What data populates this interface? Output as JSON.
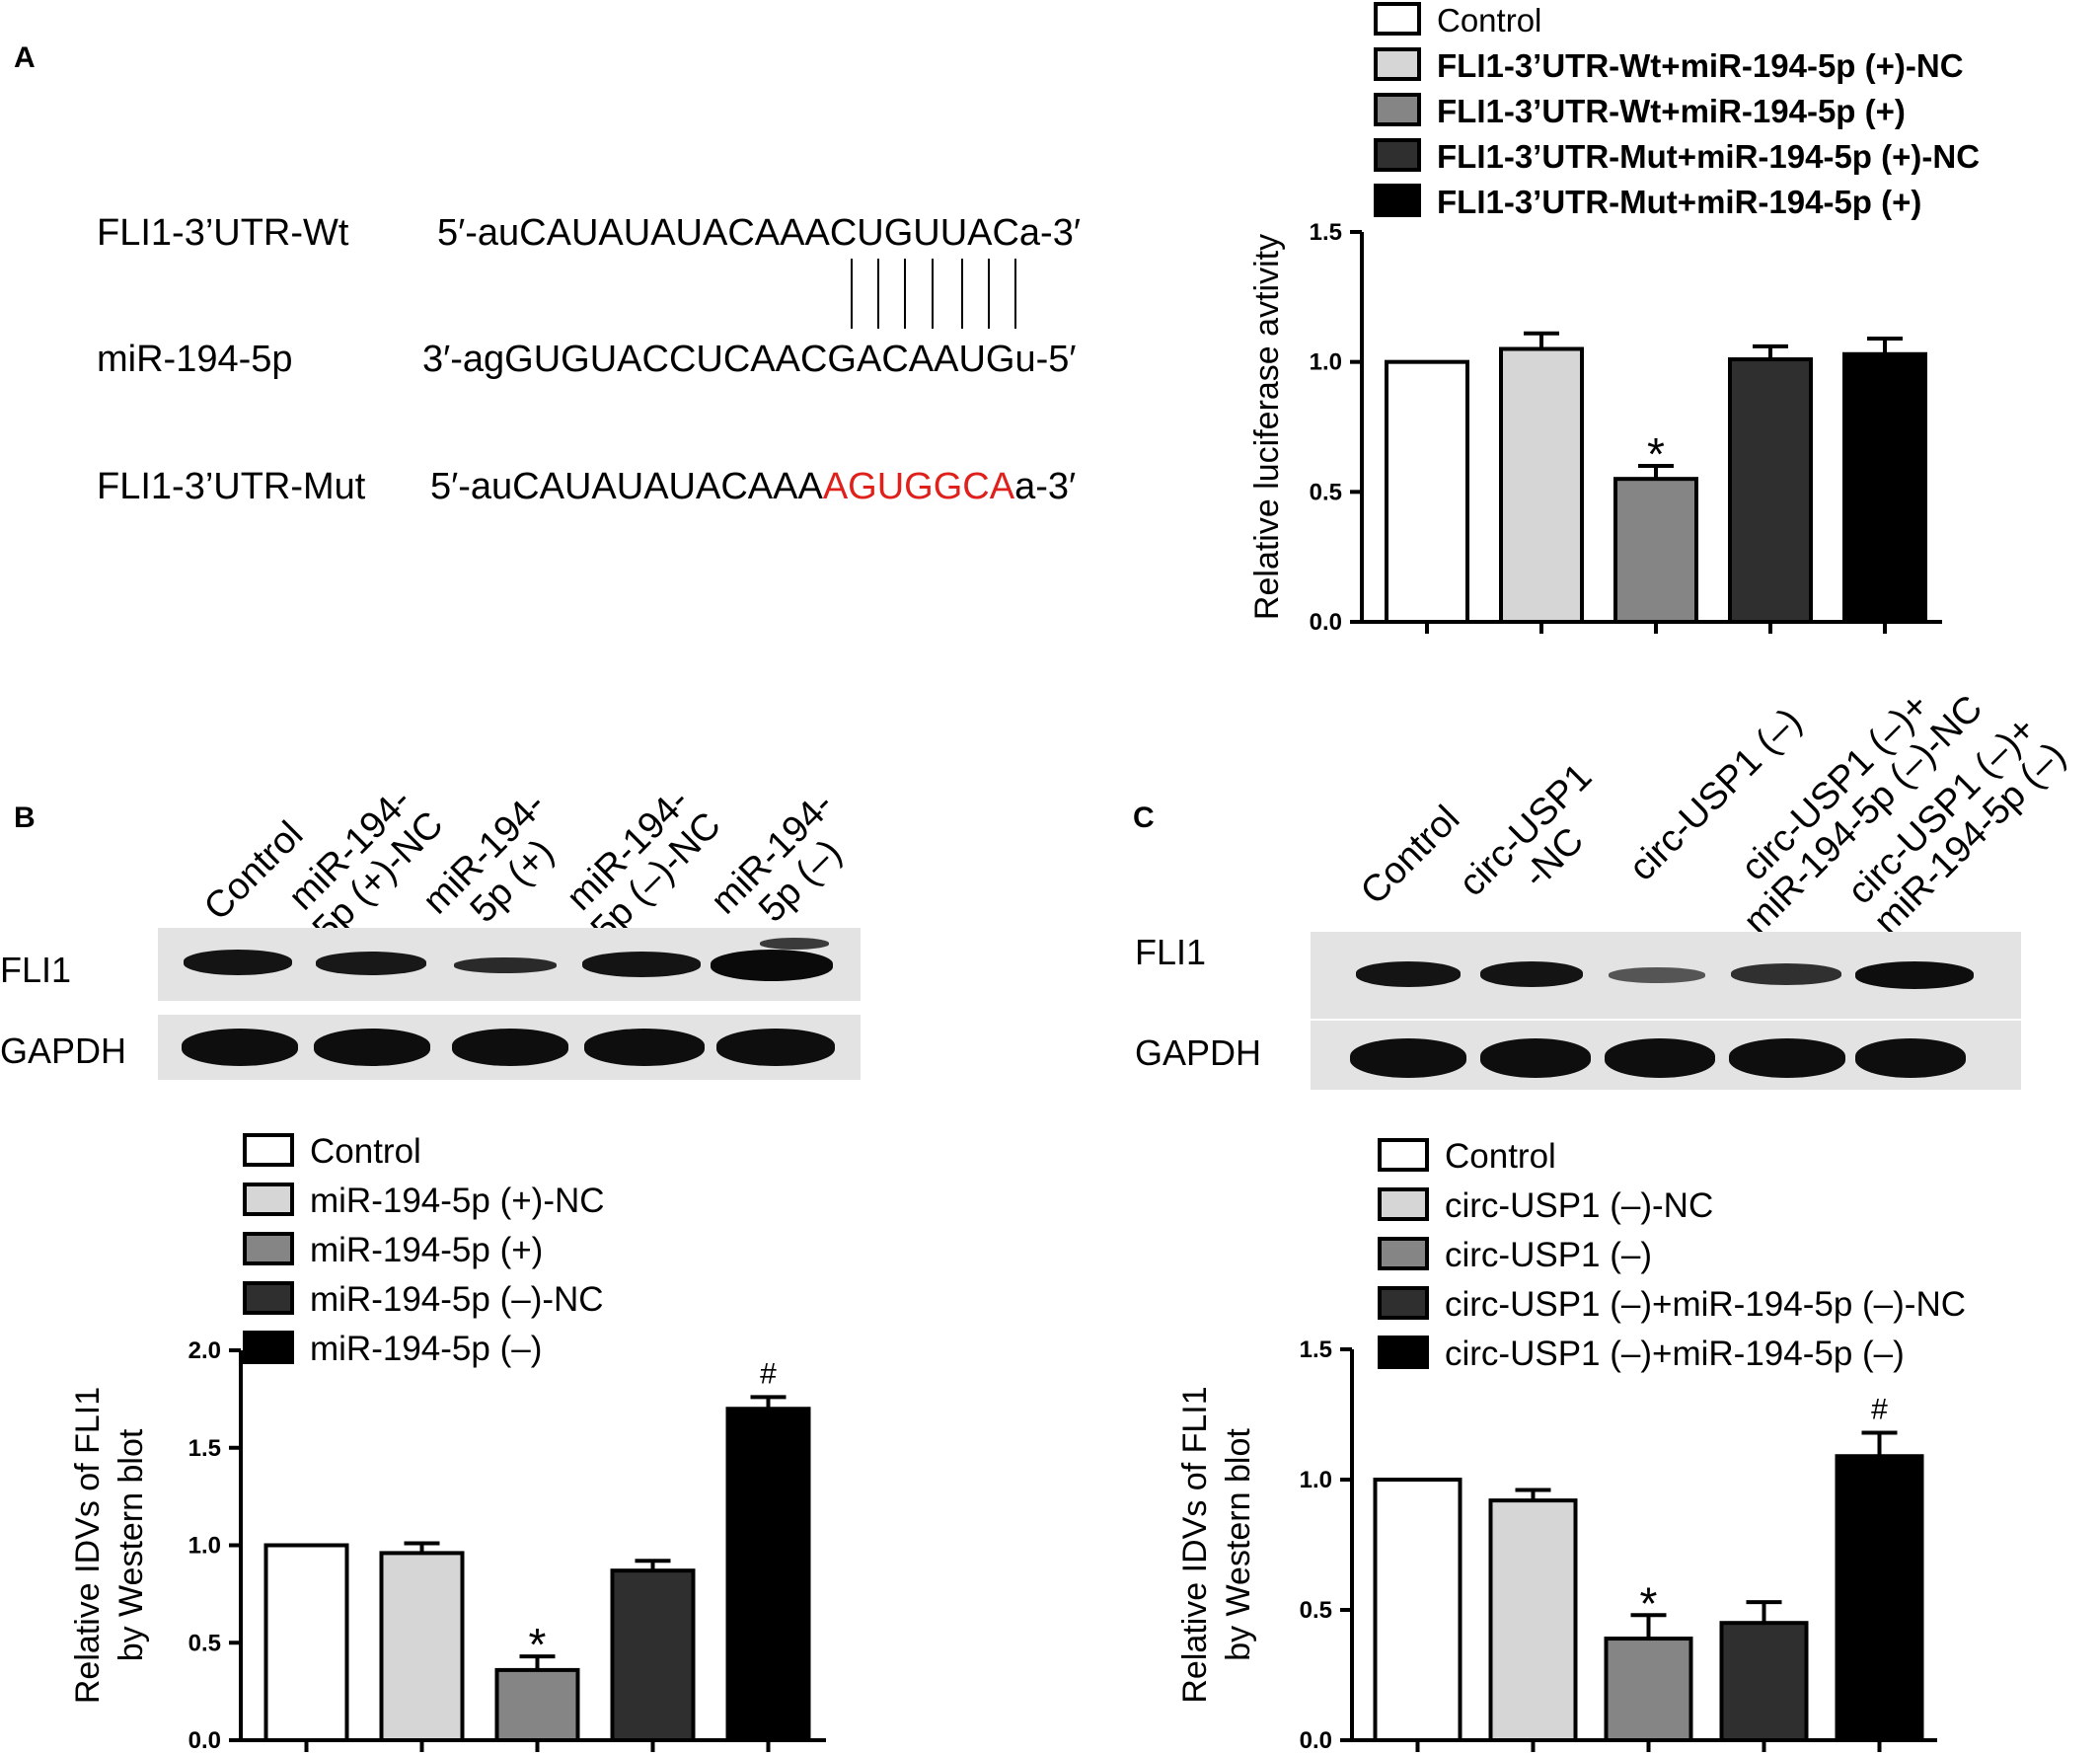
{
  "panelA": {
    "letter": "A",
    "wt_label": "FLI1-3’UTR-Wt",
    "wt_seq": "5′-auCAUAUAUACAAACUGUUACa-3′",
    "mir_label": "miR-194-5p",
    "mir_seq": "3′-agGUGUACCUCAACGACAAUGu-5′",
    "mut_label": "FLI1-3’UTR-Mut",
    "mut_seq_prefix": "5′-auCAUAUAUACAAA",
    "mut_seq_mutated": "AGUGGCA",
    "mut_seq_suffix": "a-3′",
    "mutated_color": "#e0201b"
  },
  "panelB": {
    "letter": "B",
    "lanes": [
      "Control",
      "miR-194-\n5p (+)-NC",
      "miR-194-\n5p (+)",
      "miR-194-\n5p (–)-NC",
      "miR-194-\n5p (–)"
    ],
    "blot_rows": [
      "FLI1",
      "GAPDH"
    ],
    "band_intensity_fli1": [
      0.85,
      0.8,
      0.55,
      0.85,
      1.0
    ],
    "band_intensity_gapdh": [
      1,
      1,
      1,
      1,
      1
    ]
  },
  "panelC": {
    "letter": "C",
    "lanes": [
      "Control",
      "circ-USP1\n-NC",
      "circ-USP1 (–)",
      "circ-USP1 (–)+\nmiR-194-5p (–)-NC",
      "circ-USP1 (–)+\nmiR-194-5p (–)"
    ],
    "blot_rows": [
      "FLI1",
      "GAPDH"
    ],
    "band_intensity_fli1": [
      0.85,
      0.85,
      0.45,
      0.6,
      0.95
    ],
    "band_intensity_gapdh": [
      1,
      1,
      1,
      1,
      1
    ]
  },
  "chart_data": [
    {
      "id": "A",
      "type": "bar",
      "categories": [
        "Control",
        "FLI1-3’UTR-Wt+miR-194-5p (+)-NC",
        "FLI1-3’UTR-Wt+miR-194-5p (+)",
        "FLI1-3’UTR-Mut+miR-194-5p (+)-NC",
        "FLI1-3’UTR-Mut+miR-194-5p (+)"
      ],
      "values": [
        1.0,
        1.05,
        0.55,
        1.01,
        1.03
      ],
      "errors": [
        0,
        0.06,
        0.05,
        0.05,
        0.06
      ],
      "annotations": [
        "",
        "",
        "*",
        "",
        ""
      ],
      "fills": [
        "#ffffff",
        "#d6d6d6",
        "#858585",
        "#2f2f2f",
        "#000000"
      ],
      "ylabel": "Relative luciferase avtivity",
      "ylim": [
        0,
        1.5
      ],
      "yticks": [
        "0.0",
        "0.5",
        "1.0",
        "1.5"
      ],
      "legend_position": "top"
    },
    {
      "id": "B",
      "type": "bar",
      "categories": [
        "Control",
        "miR-194-5p (+)-NC",
        "miR-194-5p (+)",
        "miR-194-5p (–)-NC",
        "miR-194-5p (–)"
      ],
      "values": [
        1.0,
        0.96,
        0.36,
        0.87,
        1.7
      ],
      "errors": [
        0,
        0.05,
        0.07,
        0.05,
        0.06
      ],
      "annotations": [
        "",
        "",
        "*",
        "",
        "#"
      ],
      "fills": [
        "#ffffff",
        "#d6d6d6",
        "#858585",
        "#2f2f2f",
        "#000000"
      ],
      "ylabel_line1": "Relative IDVs of FLI1",
      "ylabel_line2": "by Western blot",
      "ylim": [
        0,
        2.0
      ],
      "yticks": [
        "0.0",
        "0.5",
        "1.0",
        "1.5",
        "2.0"
      ],
      "legend_position": "top"
    },
    {
      "id": "C",
      "type": "bar",
      "categories": [
        "Control",
        "circ-USP1 (–)-NC",
        "circ-USP1 (–)",
        "circ-USP1 (–)+miR-194-5p (–)-NC",
        "circ-USP1 (–)+miR-194-5p (–)"
      ],
      "values": [
        1.0,
        0.92,
        0.39,
        0.45,
        1.09
      ],
      "errors": [
        0,
        0.04,
        0.09,
        0.08,
        0.09
      ],
      "annotations": [
        "",
        "",
        "*",
        "",
        "#"
      ],
      "fills": [
        "#ffffff",
        "#d6d6d6",
        "#858585",
        "#2f2f2f",
        "#000000"
      ],
      "ylabel_line1": "Relative IDVs of FLI1",
      "ylabel_line2": "by Western blot",
      "ylim": [
        0,
        1.5
      ],
      "yticks": [
        "0.0",
        "0.5",
        "1.0",
        "1.5"
      ],
      "legend_position": "top"
    }
  ]
}
